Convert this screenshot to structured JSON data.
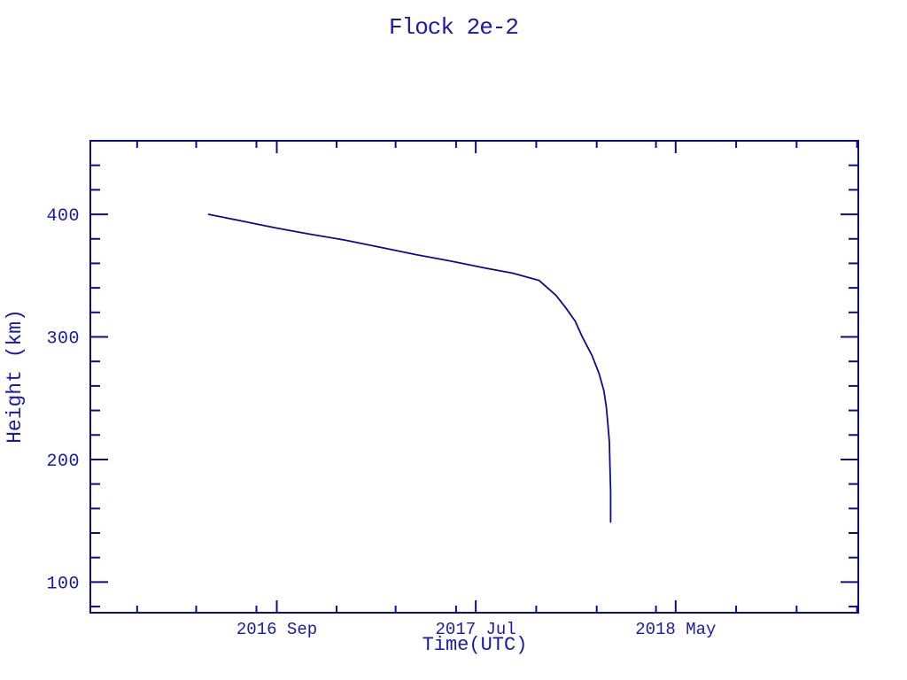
{
  "page": {
    "background": "#ffffff"
  },
  "chart_data": {
    "type": "line",
    "title": "Flock 2e-2",
    "xlabel": "Time(UTC)",
    "ylabel": "Height (km)",
    "grid": false,
    "legend": false,
    "colors": {
      "line": "#0d0d8c",
      "frame": "#0d0d8c",
      "text": "#1a1aa6"
    },
    "x_axis": {
      "unit": "decimal_year",
      "min": 2015.89,
      "max": 2019.09,
      "major_ticks": [
        {
          "value": 2016.667,
          "label": "2016 Sep"
        },
        {
          "value": 2017.496,
          "label": "2017 Jul"
        },
        {
          "value": 2018.329,
          "label": "2018 May"
        }
      ],
      "minor_ticks": [
        2016.085,
        2016.331,
        2016.582,
        2016.916,
        2017.162,
        2017.414,
        2017.748,
        2018.0,
        2018.247,
        2018.581,
        2018.833,
        2019.085
      ]
    },
    "y_axis": {
      "unit": "km",
      "min": 75,
      "max": 460,
      "major_ticks": [
        {
          "value": 100,
          "label": "100"
        },
        {
          "value": 200,
          "label": "200"
        },
        {
          "value": 300,
          "label": "300"
        },
        {
          "value": 400,
          "label": "400"
        }
      ],
      "minor_tick_step": 20
    },
    "series": [
      {
        "name": "Flock 2e-2 height",
        "points": [
          [
            2016.383,
            400
          ],
          [
            2016.51,
            395
          ],
          [
            2016.66,
            389
          ],
          [
            2016.8,
            384
          ],
          [
            2016.95,
            379
          ],
          [
            2017.1,
            373
          ],
          [
            2017.25,
            367
          ],
          [
            2017.39,
            362
          ],
          [
            2017.54,
            356
          ],
          [
            2017.65,
            352
          ],
          [
            2017.76,
            346
          ],
          [
            2017.83,
            334
          ],
          [
            2017.87,
            324
          ],
          [
            2017.91,
            313
          ],
          [
            2017.94,
            300
          ],
          [
            2017.98,
            285
          ],
          [
            2018.01,
            270
          ],
          [
            2018.03,
            256
          ],
          [
            2018.04,
            243
          ],
          [
            2018.047,
            228
          ],
          [
            2018.053,
            214
          ],
          [
            2018.055,
            196
          ],
          [
            2018.058,
            174
          ],
          [
            2018.058,
            149
          ]
        ]
      }
    ]
  }
}
